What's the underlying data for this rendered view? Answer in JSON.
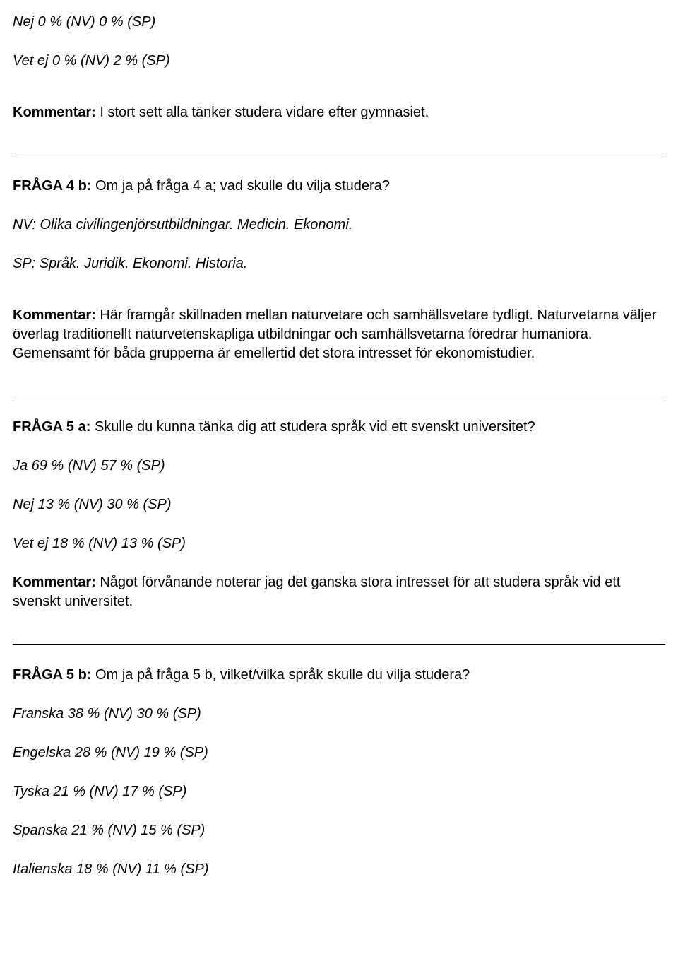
{
  "section1": {
    "nej": "Nej 0 % (NV) 0 % (SP)",
    "vetej": "Vet ej 0 % (NV) 2 % (SP)",
    "kommentar_label": "Kommentar:",
    "kommentar_text": " I stort sett alla tänker studera vidare efter gymnasiet."
  },
  "question4b": {
    "label": "FRÅGA 4 b:",
    "text": " Om ja på fråga 4 a; vad skulle du vilja studera?",
    "nv": "NV: Olika civilingenjörsutbildningar. Medicin. Ekonomi.",
    "sp": "SP: Språk. Juridik. Ekonomi. Historia.",
    "kommentar_label": "Kommentar:",
    "kommentar_text": " Här framgår skillnaden mellan naturvetare och samhällsvetare tydligt. Naturvetarna väljer överlag traditionellt naturvetenskapliga utbildningar och samhällsvetarna föredrar humaniora. Gemensamt för båda grupperna är emellertid det stora intresset för ekonomistudier."
  },
  "question5a": {
    "label": "FRÅGA 5 a:",
    "text": " Skulle du kunna tänka dig att studera språk vid ett svenskt universitet?",
    "ja": "Ja 69 % (NV) 57 % (SP)",
    "nej": "Nej 13 % (NV) 30 % (SP)",
    "vetej": "Vet ej 18 % (NV) 13 % (SP)",
    "kommentar_label": "Kommentar:",
    "kommentar_text": " Något förvånande noterar jag det ganska stora intresset för att studera språk vid ett svenskt universitet."
  },
  "question5b": {
    "label": "FRÅGA 5 b:",
    "text": " Om ja på fråga 5 b, vilket/vilka språk skulle du vilja studera?",
    "franska": "Franska 38 % (NV) 30 % (SP)",
    "engelska": "Engelska 28 % (NV) 19 % (SP)",
    "tyska": "Tyska 21 % (NV) 17 % (SP)",
    "spanska": "Spanska 21 % (NV) 15 % (SP)",
    "italienska": "Italienska 18 % (NV) 11 % (SP)"
  }
}
